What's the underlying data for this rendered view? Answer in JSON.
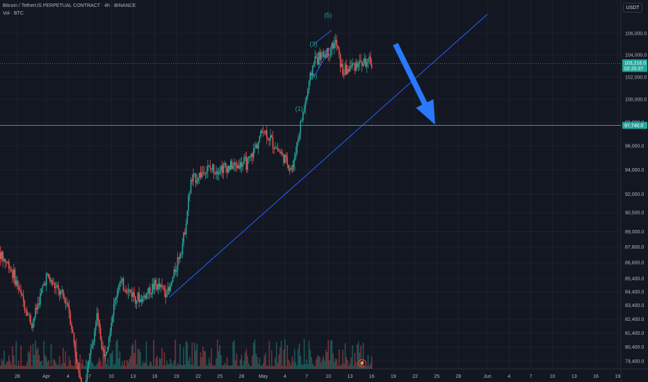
{
  "header": {
    "title": "Bitcoin / TetherUS PERPETUAL CONTRACT · 4h · BINANCE",
    "indicator": "Vol · BTC"
  },
  "currency_button": "USDT",
  "event_icon": "lightning-icon",
  "colors": {
    "background": "#131722",
    "grid": "#1e222d",
    "up": "#26a69a",
    "down": "#ef5350",
    "text": "#b2b5be",
    "trendline": "#2962ff",
    "arrow": "#2979ff",
    "hline": "#26a69a",
    "wave_label": "#26a69a"
  },
  "chart_data": {
    "type": "candlestick",
    "title": "Bitcoin / TetherUS PERPETUAL CONTRACT · 4h · BINANCE",
    "price_axis": {
      "ticks": [
        "106,000.0",
        "104,000.0",
        "102,000.0",
        "100,000.0",
        "98,000.0",
        "96,000.0",
        "94,000.0",
        "92,000.0",
        "90,500.0",
        "89,000.0",
        "87,800.0",
        "86,600.0",
        "85,400.0",
        "84,400.0",
        "83,400.0",
        "82,400.0",
        "81,400.0",
        "80,400.0",
        "79,400.0"
      ],
      "scale": "log"
    },
    "time_axis": {
      "ticks": [
        "28",
        "Apr",
        "4",
        "7",
        "10",
        "13",
        "16",
        "19",
        "22",
        "25",
        "28",
        "May",
        "4",
        "7",
        "10",
        "13",
        "16",
        "19",
        "22",
        "25",
        "28",
        "Jun",
        "4",
        "7",
        "10",
        "13",
        "16",
        "19",
        "22",
        "25"
      ]
    },
    "current_price": {
      "value": 103216,
      "label": "103,216.0",
      "countdown": "02:25:37"
    },
    "horizontal_line": {
      "value": 97740,
      "label": "97,740.0"
    },
    "approx_price_path": [
      {
        "date": "Mar 26",
        "price": 87600
      },
      {
        "date": "Mar 28",
        "price": 86300
      },
      {
        "date": "Mar 31",
        "price": 82000
      },
      {
        "date": "Apr 2",
        "price": 85600
      },
      {
        "date": "Apr 5",
        "price": 83500
      },
      {
        "date": "Apr 7",
        "price": 76800
      },
      {
        "date": "Apr 9",
        "price": 82500
      },
      {
        "date": "Apr 10",
        "price": 79600
      },
      {
        "date": "Apr 12",
        "price": 85100
      },
      {
        "date": "Apr 15",
        "price": 83800
      },
      {
        "date": "Apr 17",
        "price": 84900
      },
      {
        "date": "Apr 19",
        "price": 84400
      },
      {
        "date": "Apr 21",
        "price": 88500
      },
      {
        "date": "Apr 22",
        "price": 93000
      },
      {
        "date": "Apr 24",
        "price": 94000
      },
      {
        "date": "Apr 28",
        "price": 94300
      },
      {
        "date": "Apr 30",
        "price": 94600
      },
      {
        "date": "May 2",
        "price": 97400
      },
      {
        "date": "May 4",
        "price": 95700
      },
      {
        "date": "May 6",
        "price": 94000
      },
      {
        "date": "May 7",
        "price": 97300
      },
      {
        "date": "May 8",
        "price": 100300
      },
      {
        "date": "May 9",
        "price": 103500
      },
      {
        "date": "May 11",
        "price": 104300
      },
      {
        "date": "May 12",
        "price": 105200
      },
      {
        "date": "May 13",
        "price": 102400
      },
      {
        "date": "May 15",
        "price": 103300
      },
      {
        "date": "May 17",
        "price": 103216
      }
    ],
    "wave_labels": [
      {
        "label": "(1)",
        "date": "May 7",
        "price": 99000
      },
      {
        "label": "(2)",
        "date": "May 6",
        "price": 94000
      },
      {
        "label": "(3)",
        "date": "May 9",
        "price": 104800
      },
      {
        "label": "(4)",
        "date": "May 9",
        "price": 101900
      },
      {
        "label": "(5)",
        "date": "May 11",
        "price": 107500
      }
    ],
    "trendline": {
      "from": {
        "date": "Apr 19",
        "price": 84000
      },
      "to": {
        "date": "Jun 2",
        "price": 107800
      }
    },
    "projection_arrow": {
      "from": {
        "date": "May 20",
        "price": 105000
      },
      "to": {
        "date": "May 25",
        "price": 97800
      }
    }
  }
}
